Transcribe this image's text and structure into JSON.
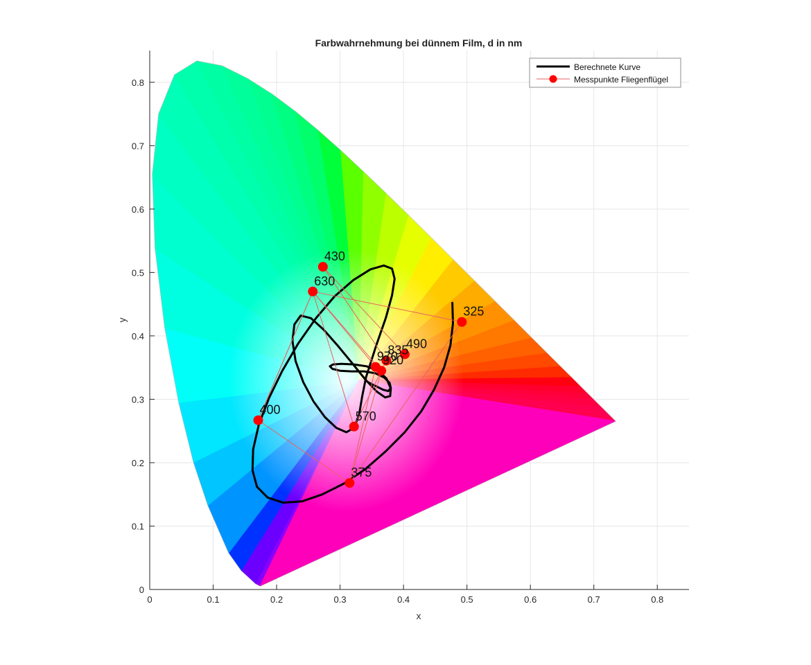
{
  "chart_data": {
    "type": "scatter",
    "title": "Farbwahrnehmung bei dünnem Film, d in nm",
    "xlabel": "x",
    "ylabel": "y",
    "xlim": [
      0,
      0.85
    ],
    "ylim": [
      0,
      0.85
    ],
    "x_ticks": [
      "0",
      "0.1",
      "0.2",
      "0.3",
      "0.4",
      "0.5",
      "0.6",
      "0.7",
      "0.8"
    ],
    "y_ticks": [
      "0",
      "0.1",
      "0.2",
      "0.3",
      "0.4",
      "0.5",
      "0.6",
      "0.7",
      "0.8"
    ],
    "grid": true,
    "legend_position": "top-right",
    "legend": [
      "Berechnete Kurve",
      "Messpunkte Fliegenflügel"
    ],
    "spectral_locus": [
      [
        0.1741,
        0.005
      ],
      [
        0.1666,
        0.0089
      ],
      [
        0.144,
        0.0297
      ],
      [
        0.1241,
        0.0578
      ],
      [
        0.0913,
        0.1327
      ],
      [
        0.0687,
        0.2007
      ],
      [
        0.0454,
        0.295
      ],
      [
        0.0235,
        0.4127
      ],
      [
        0.0082,
        0.5384
      ],
      [
        0.0039,
        0.6548
      ],
      [
        0.0139,
        0.7502
      ],
      [
        0.0389,
        0.812
      ],
      [
        0.0743,
        0.8338
      ],
      [
        0.1142,
        0.8262
      ],
      [
        0.1547,
        0.8059
      ],
      [
        0.1929,
        0.7816
      ],
      [
        0.2296,
        0.7543
      ],
      [
        0.2658,
        0.7243
      ],
      [
        0.3016,
        0.6923
      ],
      [
        0.3373,
        0.6589
      ],
      [
        0.3731,
        0.6245
      ],
      [
        0.4087,
        0.5896
      ],
      [
        0.4441,
        0.5547
      ],
      [
        0.4788,
        0.5202
      ],
      [
        0.5125,
        0.4866
      ],
      [
        0.5448,
        0.4544
      ],
      [
        0.5752,
        0.4242
      ],
      [
        0.6029,
        0.3965
      ],
      [
        0.627,
        0.3725
      ],
      [
        0.6482,
        0.3514
      ],
      [
        0.6658,
        0.334
      ],
      [
        0.6801,
        0.3197
      ],
      [
        0.6915,
        0.3083
      ],
      [
        0.7006,
        0.2993
      ],
      [
        0.714,
        0.2859
      ],
      [
        0.7347,
        0.2653
      ]
    ],
    "series": [
      {
        "name": "Berechnete Kurve",
        "type": "line",
        "color": "#000000",
        "x": [
          0.477,
          0.478,
          0.474,
          0.464,
          0.448,
          0.428,
          0.402,
          0.372,
          0.34,
          0.306,
          0.272,
          0.24,
          0.21,
          0.186,
          0.169,
          0.162,
          0.163,
          0.172,
          0.188,
          0.209,
          0.234,
          0.262,
          0.291,
          0.321,
          0.348,
          0.369,
          0.382,
          0.386,
          0.382,
          0.372,
          0.357,
          0.341,
          0.335,
          0.33,
          0.322,
          0.31,
          0.294,
          0.276,
          0.258,
          0.242,
          0.23,
          0.225,
          0.228,
          0.238,
          0.254,
          0.274,
          0.296,
          0.319,
          0.34,
          0.358,
          0.371,
          0.379,
          0.38,
          0.373,
          0.36,
          0.342,
          0.322,
          0.302,
          0.289,
          0.284,
          0.288,
          0.3,
          0.318,
          0.338,
          0.356,
          0.37,
          0.378,
          0.38,
          0.376,
          0.368,
          0.356,
          0.344
        ],
        "y": [
          0.452,
          0.42,
          0.385,
          0.35,
          0.315,
          0.281,
          0.248,
          0.218,
          0.19,
          0.167,
          0.15,
          0.139,
          0.137,
          0.145,
          0.162,
          0.188,
          0.221,
          0.26,
          0.302,
          0.345,
          0.388,
          0.428,
          0.462,
          0.488,
          0.505,
          0.511,
          0.506,
          0.49,
          0.464,
          0.428,
          0.385,
          0.335,
          0.305,
          0.275,
          0.255,
          0.248,
          0.255,
          0.272,
          0.297,
          0.327,
          0.36,
          0.392,
          0.418,
          0.432,
          0.428,
          0.41,
          0.385,
          0.357,
          0.331,
          0.312,
          0.303,
          0.305,
          0.317,
          0.333,
          0.345,
          0.352,
          0.355,
          0.356,
          0.355,
          0.352,
          0.348,
          0.345,
          0.344,
          0.344,
          0.341,
          0.334,
          0.326,
          0.318,
          0.313,
          0.315,
          0.321,
          0.327
        ]
      },
      {
        "name": "Messpunkte Fliegenflügel",
        "type": "scatter",
        "color": "#ff0000",
        "points": [
          {
            "label": "325",
            "x": 0.492,
            "y": 0.422
          },
          {
            "label": "375",
            "x": 0.315,
            "y": 0.168
          },
          {
            "label": "400",
            "x": 0.171,
            "y": 0.267
          },
          {
            "label": "430",
            "x": 0.273,
            "y": 0.509
          },
          {
            "label": "630",
            "x": 0.257,
            "y": 0.47
          },
          {
            "label": "570",
            "x": 0.322,
            "y": 0.257
          },
          {
            "label": "490",
            "x": 0.402,
            "y": 0.371
          },
          {
            "label": "835",
            "x": 0.373,
            "y": 0.361
          },
          {
            "label": "920",
            "x": 0.365,
            "y": 0.345
          },
          {
            "label": "970",
            "x": 0.356,
            "y": 0.351
          }
        ],
        "connections": [
          [
            0,
            1
          ],
          [
            1,
            2
          ],
          [
            2,
            4
          ],
          [
            4,
            0
          ],
          [
            3,
            6
          ],
          [
            3,
            7
          ],
          [
            4,
            8
          ],
          [
            4,
            9
          ],
          [
            1,
            9
          ],
          [
            1,
            8
          ],
          [
            5,
            7
          ],
          [
            5,
            4
          ],
          [
            4,
            2
          ]
        ]
      }
    ]
  }
}
